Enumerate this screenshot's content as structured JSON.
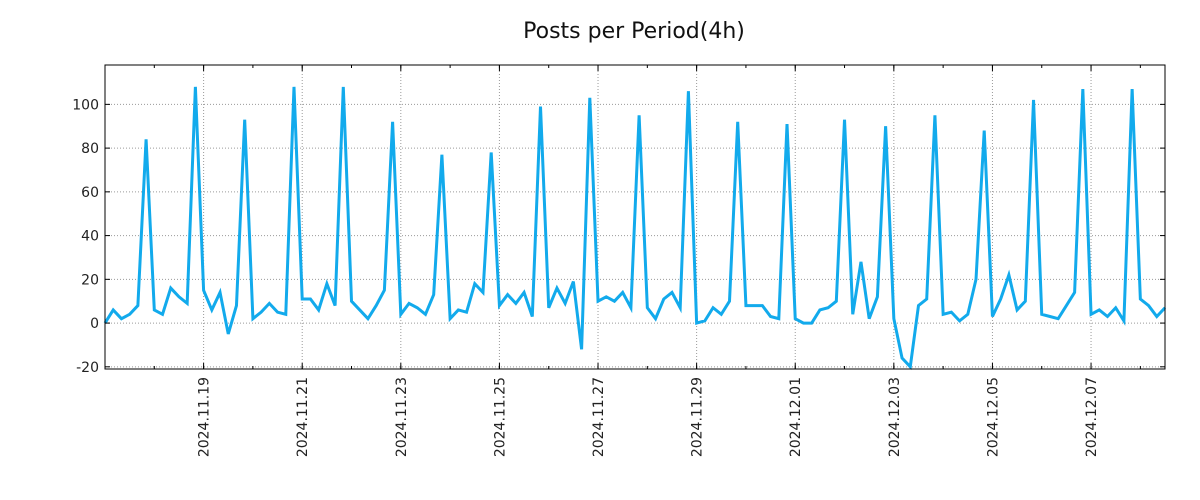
{
  "chart_data": {
    "type": "line",
    "title": "Posts per Period(4h)",
    "xlabel": "",
    "ylabel": "",
    "ylim": [
      -21,
      118
    ],
    "grid": true,
    "line_color": "#12aaec",
    "y_ticks": [
      -20,
      0,
      20,
      40,
      60,
      80,
      100
    ],
    "x_tick_labels": [
      "2024.11.19",
      "2024.11.21",
      "2024.11.23",
      "2024.11.25",
      "2024.11.27",
      "2024.11.29",
      "2024.12.01",
      "2024.12.03",
      "2024.12.05",
      "2024.12.07"
    ],
    "x_tick_index": [
      12,
      24,
      36,
      48,
      60,
      72,
      84,
      96,
      108,
      120
    ],
    "series": [
      {
        "name": "Posts per Period(4h)",
        "values": [
          0,
          6,
          2,
          4,
          8,
          84,
          6,
          4,
          16,
          12,
          9,
          108,
          15,
          6,
          14,
          -5,
          8,
          93,
          2,
          5,
          9,
          5,
          4,
          108,
          11,
          11,
          6,
          18,
          8,
          108,
          10,
          6,
          2,
          8,
          15,
          92,
          4,
          9,
          7,
          4,
          13,
          77,
          2,
          6,
          5,
          18,
          14,
          78,
          8,
          13,
          9,
          14,
          3,
          99,
          7,
          16,
          9,
          19,
          -12,
          103,
          10,
          12,
          10,
          14,
          7,
          95,
          7,
          2,
          11,
          14,
          7,
          106,
          0,
          1,
          7,
          4,
          10,
          92,
          8,
          8,
          8,
          3,
          2,
          91,
          2,
          0,
          0,
          6,
          7,
          10,
          93,
          4,
          28,
          2,
          12,
          90,
          2,
          -16,
          -20,
          8,
          11,
          95,
          4,
          5,
          1,
          4,
          20,
          88,
          3,
          11,
          22,
          6,
          10,
          102,
          4,
          3,
          2,
          8,
          14,
          107,
          4,
          6,
          3,
          7,
          1,
          107,
          11,
          8,
          3,
          7
        ]
      }
    ]
  }
}
